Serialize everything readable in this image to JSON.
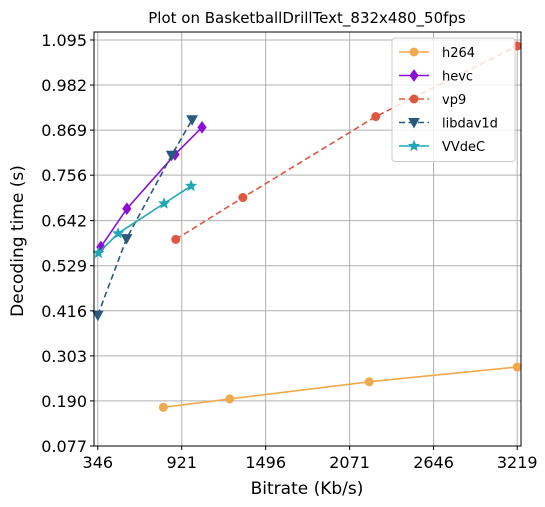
{
  "chart_data": {
    "type": "line",
    "title": "Plot on BasketballDrillText_832x480_50fps",
    "xlabel": "Bitrate (Kb/s)",
    "ylabel": "Decoding time (s)",
    "xlim": [
      320,
      3245
    ],
    "ylim": [
      0.077,
      1.115
    ],
    "xticks": [
      346,
      921,
      1496,
      2071,
      2646,
      3219
    ],
    "xtick_labels": [
      "346",
      "921",
      "1496",
      "2071",
      "2646",
      "3219"
    ],
    "yticks": [
      0.077,
      0.19,
      0.303,
      0.416,
      0.529,
      0.642,
      0.756,
      0.869,
      0.982,
      1.095
    ],
    "ytick_labels": [
      "0.077",
      "0.190",
      "0.303",
      "0.416",
      "0.529",
      "0.642",
      "0.756",
      "0.869",
      "0.982",
      "1.095"
    ],
    "grid": true,
    "legend_position": "top-right",
    "series": [
      {
        "name": "h264",
        "color": "#f0a94d",
        "dash": "solid",
        "marker": "circle",
        "x": [
          795,
          1250,
          2205,
          3219
        ],
        "y": [
          0.174,
          0.195,
          0.238,
          0.275
        ]
      },
      {
        "name": "hevc",
        "color": "#8b0fd6",
        "dash": "solid",
        "marker": "diamond",
        "x": [
          367,
          545,
          875,
          1060
        ],
        "y": [
          0.576,
          0.672,
          0.808,
          0.876
        ]
      },
      {
        "name": "vp9",
        "color": "#e0573f",
        "dash": "dashed",
        "marker": "circle",
        "x": [
          880,
          1340,
          2250,
          3219
        ],
        "y": [
          0.595,
          0.7,
          0.903,
          1.08
        ]
      },
      {
        "name": "libdav1d",
        "color": "#285a7e",
        "dash": "dashed",
        "marker": "triangle-down",
        "x": [
          346,
          543,
          852,
          992
        ],
        "y": [
          0.405,
          0.597,
          0.806,
          0.895
        ]
      },
      {
        "name": "VVdeC",
        "color": "#1fa7b5",
        "dash": "solid",
        "marker": "star",
        "x": [
          350,
          485,
          800,
          985
        ],
        "y": [
          0.561,
          0.61,
          0.685,
          0.729
        ]
      }
    ]
  }
}
